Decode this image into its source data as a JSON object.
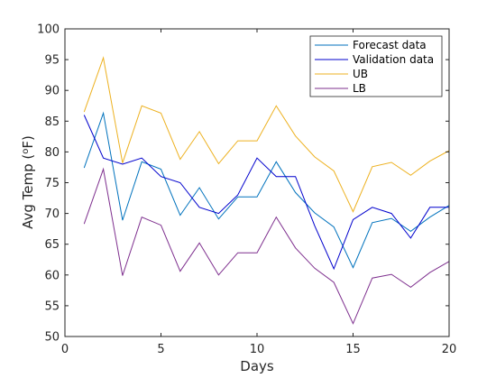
{
  "chart_data": {
    "type": "line",
    "title": "",
    "xlabel": "Days",
    "ylabel": "Avg Temp (",
    "ylabel_unit_sup": "o",
    "ylabel_unit_suffix": "F)",
    "xlim": [
      0,
      20
    ],
    "ylim": [
      50,
      100
    ],
    "xticks": [
      0,
      5,
      10,
      15,
      20
    ],
    "yticks": [
      50,
      55,
      60,
      65,
      70,
      75,
      80,
      85,
      90,
      95,
      100
    ],
    "grid": false,
    "legend_position": "top-right",
    "x": [
      1,
      2,
      3,
      4,
      5,
      6,
      7,
      8,
      9,
      10,
      11,
      12,
      13,
      14,
      15,
      16,
      17,
      18,
      19,
      20
    ],
    "series": [
      {
        "name": "Forecast data",
        "color": "#0072BD",
        "values": [
          77.4,
          86.3,
          68.9,
          78.4,
          77.2,
          69.7,
          74.2,
          69.1,
          72.7,
          72.7,
          78.4,
          73.4,
          70.1,
          67.8,
          61.2,
          68.5,
          69.2,
          67.1,
          69.4,
          71.3
        ]
      },
      {
        "name": "Validation data",
        "color": "#0000CD",
        "values": [
          86,
          79,
          78,
          79,
          76,
          75,
          71,
          70,
          73,
          79,
          76,
          76,
          68,
          61,
          69,
          71,
          70,
          66,
          71,
          71
        ]
      },
      {
        "name": "UB",
        "color": "#EDB120",
        "values": [
          86.5,
          95.3,
          78.2,
          87.5,
          86.3,
          78.8,
          83.3,
          78.1,
          81.8,
          81.8,
          87.5,
          82.6,
          79.2,
          76.9,
          70.3,
          77.6,
          78.3,
          76.2,
          78.5,
          80.2
        ]
      },
      {
        "name": "LB",
        "color": "#7E2F8E",
        "values": [
          68.3,
          77.2,
          59.9,
          69.4,
          68.1,
          60.6,
          65.2,
          60.0,
          63.6,
          63.6,
          69.4,
          64.4,
          61.1,
          58.8,
          52.1,
          59.5,
          60.1,
          58.0,
          60.4,
          62.2
        ]
      }
    ]
  }
}
